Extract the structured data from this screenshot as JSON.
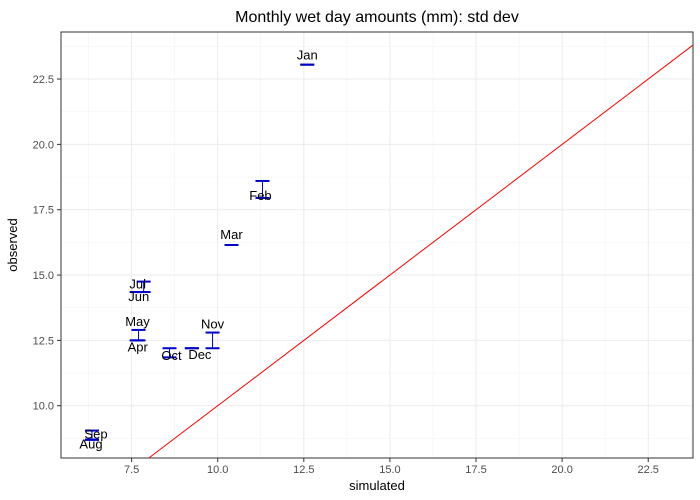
{
  "chart_data": {
    "type": "scatter",
    "title": "Monthly wet day amounts (mm): std dev",
    "xlabel": "simulated",
    "ylabel": "observed",
    "xlim": [
      5.45,
      23.8
    ],
    "ylim": [
      8.0,
      24.3
    ],
    "x_ticks": [
      7.5,
      10.0,
      12.5,
      15.0,
      17.5,
      20.0,
      22.5
    ],
    "x_tick_labels": [
      "7.5",
      "10.0",
      "12.5",
      "15.0",
      "17.5",
      "20.0",
      "22.5"
    ],
    "y_ticks": [
      10.0,
      12.5,
      15.0,
      17.5,
      20.0,
      22.5
    ],
    "y_tick_labels": [
      "10.0",
      "12.5",
      "15.0",
      "17.5",
      "20.0",
      "22.5"
    ],
    "grid": true,
    "reference_line": {
      "type": "identity",
      "color": "#ff0000"
    },
    "marker_color": "#0000cc",
    "points": [
      {
        "label": "Jan",
        "x": 12.6,
        "y": 23.05,
        "y_low": 23.05,
        "y_high": 23.05
      },
      {
        "label": "Feb",
        "x": 11.3,
        "y": 18.6,
        "y_low": 17.95,
        "y_high": 18.6
      },
      {
        "label": "Mar",
        "x": 10.4,
        "y": 16.15,
        "y_low": 16.15,
        "y_high": 16.15
      },
      {
        "label": "Jul",
        "x": 7.85,
        "y": 14.75,
        "y_low": 14.35,
        "y_high": 14.75
      },
      {
        "label": "Jun",
        "x": 7.65,
        "y": 14.35,
        "y_low": 14.35,
        "y_high": 14.35
      },
      {
        "label": "May",
        "x": 7.7,
        "y": 12.9,
        "y_low": 12.5,
        "y_high": 12.9
      },
      {
        "label": "Apr",
        "x": 7.65,
        "y": 12.5,
        "y_low": 12.5,
        "y_high": 12.5
      },
      {
        "label": "Nov",
        "x": 9.85,
        "y": 12.8,
        "y_low": 12.2,
        "y_high": 12.8
      },
      {
        "label": "Dec",
        "x": 9.25,
        "y": 12.2,
        "y_low": 12.2,
        "y_high": 12.2
      },
      {
        "label": "Oct",
        "x": 8.6,
        "y": 12.2,
        "y_low": 11.85,
        "y_high": 12.2
      },
      {
        "label": "Sep",
        "x": 6.35,
        "y": 9.05,
        "y_low": 8.7,
        "y_high": 9.05
      },
      {
        "label": "Aug",
        "x": 6.35,
        "y": 8.7,
        "y_low": 8.7,
        "y_high": 8.7
      }
    ]
  }
}
